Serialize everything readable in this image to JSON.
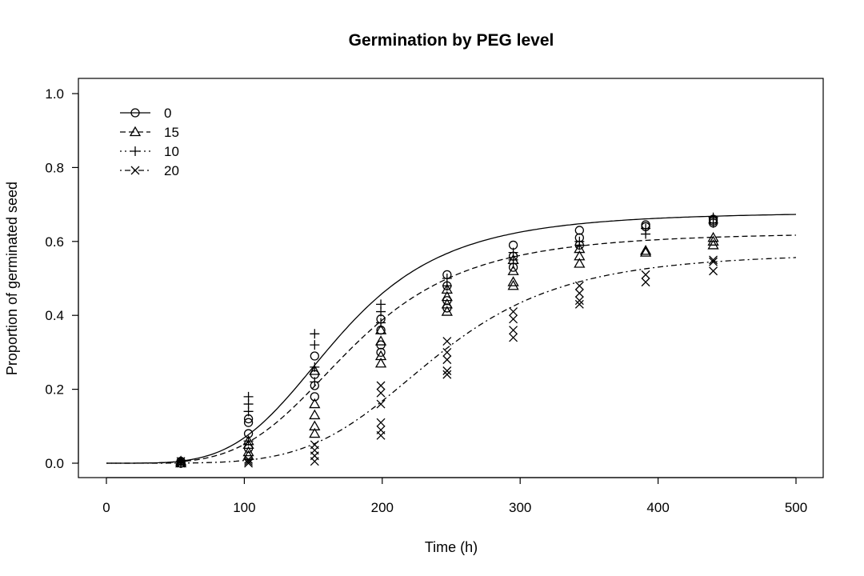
{
  "chart_data": {
    "type": "scatter",
    "title": "Germination by PEG level",
    "xlabel": "Time (h)",
    "ylabel": "Proportion of germinated seed",
    "xlim": [
      0,
      500
    ],
    "ylim": [
      0,
      1
    ],
    "x_ticks": [
      0,
      100,
      200,
      300,
      400,
      500
    ],
    "y_ticks": [
      0.0,
      0.2,
      0.4,
      0.6,
      0.8,
      1.0
    ],
    "y_tick_labels": [
      "0.0",
      "0.2",
      "0.4",
      "0.6",
      "0.8",
      "1.0"
    ],
    "grid": false,
    "legend_position": "top-left",
    "series": [
      {
        "name": "0",
        "marker": "circle",
        "line": "solid",
        "curve": {
          "d": 0.68,
          "t50": 168,
          "b": 4.2
        },
        "points": [
          [
            54,
            0.0
          ],
          [
            54,
            0.005
          ],
          [
            103,
            0.12
          ],
          [
            103,
            0.11
          ],
          [
            103,
            0.08
          ],
          [
            103,
            0.04
          ],
          [
            151,
            0.29
          ],
          [
            151,
            0.24
          ],
          [
            151,
            0.21
          ],
          [
            151,
            0.18
          ],
          [
            199,
            0.39
          ],
          [
            199,
            0.36
          ],
          [
            199,
            0.32
          ],
          [
            199,
            0.3
          ],
          [
            247,
            0.51
          ],
          [
            247,
            0.48
          ],
          [
            247,
            0.44
          ],
          [
            247,
            0.42
          ],
          [
            295,
            0.59
          ],
          [
            295,
            0.56
          ],
          [
            295,
            0.53
          ],
          [
            343,
            0.63
          ],
          [
            343,
            0.61
          ],
          [
            343,
            0.59
          ],
          [
            391,
            0.645
          ],
          [
            391,
            0.64
          ],
          [
            440,
            0.66
          ],
          [
            440,
            0.655
          ],
          [
            440,
            0.65
          ]
        ]
      },
      {
        "name": "15",
        "marker": "triangle",
        "line": "dashed",
        "curve": {
          "d": 0.625,
          "t50": 178,
          "b": 4.2
        },
        "points": [
          [
            54,
            0.0
          ],
          [
            54,
            0.005
          ],
          [
            103,
            0.06
          ],
          [
            103,
            0.05
          ],
          [
            103,
            0.03
          ],
          [
            103,
            0.02
          ],
          [
            151,
            0.25
          ],
          [
            151,
            0.16
          ],
          [
            151,
            0.13
          ],
          [
            151,
            0.1
          ],
          [
            151,
            0.08
          ],
          [
            199,
            0.36
          ],
          [
            199,
            0.33
          ],
          [
            199,
            0.29
          ],
          [
            199,
            0.27
          ],
          [
            247,
            0.47
          ],
          [
            247,
            0.45
          ],
          [
            247,
            0.43
          ],
          [
            247,
            0.41
          ],
          [
            295,
            0.55
          ],
          [
            295,
            0.52
          ],
          [
            295,
            0.49
          ],
          [
            295,
            0.48
          ],
          [
            343,
            0.58
          ],
          [
            343,
            0.56
          ],
          [
            343,
            0.54
          ],
          [
            391,
            0.575
          ],
          [
            391,
            0.57
          ],
          [
            440,
            0.61
          ],
          [
            440,
            0.6
          ],
          [
            440,
            0.59
          ]
        ]
      },
      {
        "name": "10",
        "marker": "plus",
        "line": "dotted",
        "curve": null,
        "points": [
          [
            54,
            0.0
          ],
          [
            54,
            0.005
          ],
          [
            103,
            0.18
          ],
          [
            103,
            0.16
          ],
          [
            103,
            0.14
          ],
          [
            103,
            0.06
          ],
          [
            151,
            0.35
          ],
          [
            151,
            0.32
          ],
          [
            151,
            0.26
          ],
          [
            151,
            0.22
          ],
          [
            199,
            0.43
          ],
          [
            199,
            0.41
          ],
          [
            199,
            0.38
          ],
          [
            247,
            0.5
          ],
          [
            247,
            0.48
          ],
          [
            295,
            0.57
          ],
          [
            295,
            0.55
          ],
          [
            295,
            0.54
          ],
          [
            343,
            0.6
          ],
          [
            343,
            0.59
          ],
          [
            391,
            0.635
          ],
          [
            391,
            0.62
          ],
          [
            440,
            0.665
          ],
          [
            440,
            0.65
          ]
        ]
      },
      {
        "name": "20",
        "marker": "cross",
        "line": "dashdot",
        "curve": {
          "d": 0.57,
          "t50": 238,
          "b": 5.0
        },
        "points": [
          [
            54,
            0.0
          ],
          [
            54,
            0.005
          ],
          [
            103,
            0.01
          ],
          [
            103,
            0.005
          ],
          [
            103,
            0.0
          ],
          [
            151,
            0.05
          ],
          [
            151,
            0.035
          ],
          [
            151,
            0.02
          ],
          [
            151,
            0.005
          ],
          [
            199,
            0.21
          ],
          [
            199,
            0.19
          ],
          [
            199,
            0.16
          ],
          [
            199,
            0.11
          ],
          [
            199,
            0.09
          ],
          [
            199,
            0.075
          ],
          [
            247,
            0.33
          ],
          [
            247,
            0.3
          ],
          [
            247,
            0.28
          ],
          [
            247,
            0.25
          ],
          [
            247,
            0.24
          ],
          [
            295,
            0.41
          ],
          [
            295,
            0.39
          ],
          [
            295,
            0.36
          ],
          [
            295,
            0.34
          ],
          [
            343,
            0.48
          ],
          [
            343,
            0.46
          ],
          [
            343,
            0.44
          ],
          [
            343,
            0.43
          ],
          [
            391,
            0.51
          ],
          [
            391,
            0.49
          ],
          [
            440,
            0.55
          ],
          [
            440,
            0.545
          ],
          [
            440,
            0.52
          ]
        ]
      }
    ]
  }
}
